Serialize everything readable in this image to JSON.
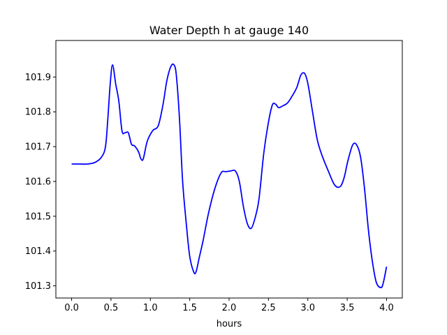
{
  "chart_data": {
    "type": "line",
    "title": "Water Depth h at gauge 140",
    "xlabel": "hours",
    "ylabel": "",
    "xlim": [
      -0.2,
      4.2
    ],
    "ylim": [
      101.265,
      102.005
    ],
    "xticks": [
      0.0,
      0.5,
      1.0,
      1.5,
      2.0,
      2.5,
      3.0,
      3.5,
      4.0
    ],
    "xtick_labels": [
      "0.0",
      "0.5",
      "1.0",
      "1.5",
      "2.0",
      "2.5",
      "3.0",
      "3.5",
      "4.0"
    ],
    "yticks": [
      101.3,
      101.4,
      101.5,
      101.6,
      101.7,
      101.8,
      101.9
    ],
    "ytick_labels": [
      "101.3",
      "101.4",
      "101.5",
      "101.6",
      "101.7",
      "101.8",
      "101.9"
    ],
    "grid": false,
    "legend": "none",
    "series": [
      {
        "color": "#0000ff",
        "x": [
          0.0,
          0.1,
          0.2,
          0.3,
          0.38,
          0.43,
          0.46,
          0.49,
          0.52,
          0.56,
          0.6,
          0.64,
          0.68,
          0.72,
          0.76,
          0.8,
          0.85,
          0.88,
          0.91,
          0.96,
          1.03,
          1.1,
          1.16,
          1.21,
          1.26,
          1.3,
          1.33,
          1.37,
          1.41,
          1.46,
          1.5,
          1.55,
          1.58,
          1.62,
          1.67,
          1.74,
          1.82,
          1.9,
          1.96,
          2.02,
          2.08,
          2.13,
          2.18,
          2.23,
          2.28,
          2.33,
          2.38,
          2.44,
          2.5,
          2.55,
          2.59,
          2.63,
          2.68,
          2.74,
          2.8,
          2.86,
          2.91,
          2.95,
          2.98,
          3.01,
          3.06,
          3.12,
          3.18,
          3.26,
          3.34,
          3.41,
          3.46,
          3.51,
          3.57,
          3.62,
          3.67,
          3.72,
          3.77,
          3.82,
          3.87,
          3.93,
          3.96,
          4.0
        ],
        "y": [
          101.65,
          101.65,
          101.65,
          101.655,
          101.67,
          101.7,
          101.78,
          101.88,
          101.935,
          101.88,
          101.83,
          101.745,
          101.74,
          101.74,
          101.707,
          101.702,
          101.685,
          101.665,
          101.665,
          101.715,
          101.746,
          101.76,
          101.82,
          101.89,
          101.93,
          101.935,
          101.905,
          101.78,
          101.6,
          101.47,
          101.385,
          101.34,
          101.34,
          101.38,
          101.43,
          101.51,
          101.58,
          101.625,
          101.628,
          101.63,
          101.63,
          101.6,
          101.53,
          101.48,
          101.465,
          101.495,
          101.55,
          101.68,
          101.77,
          101.82,
          101.822,
          101.812,
          101.817,
          101.825,
          101.845,
          101.87,
          101.905,
          101.912,
          101.9,
          101.87,
          101.8,
          101.72,
          101.675,
          101.63,
          101.59,
          101.585,
          101.61,
          101.66,
          101.705,
          101.705,
          101.67,
          101.58,
          101.46,
          101.37,
          101.31,
          101.295,
          101.31,
          101.355
        ]
      }
    ]
  }
}
